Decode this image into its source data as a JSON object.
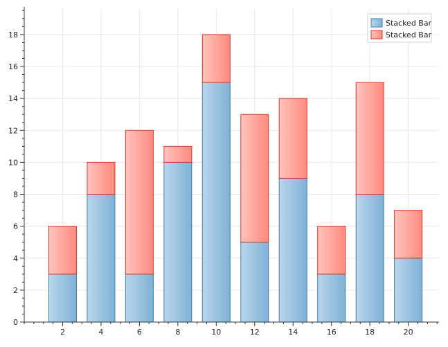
{
  "chart_data": {
    "type": "bar",
    "stacked": true,
    "categories": [
      2,
      4,
      6,
      8,
      10,
      12,
      14,
      16,
      18,
      20
    ],
    "series": [
      {
        "name": "Stacked Bar",
        "values": [
          3,
          8,
          3,
          10,
          15,
          5,
          9,
          3,
          8,
          4
        ],
        "color": "#8fbcdc",
        "stroke": "#3f7ea6"
      },
      {
        "name": "Stacked Bar",
        "values": [
          3,
          2,
          9,
          1,
          3,
          8,
          5,
          3,
          7,
          3
        ],
        "color": "#ff9a90",
        "stroke": "#d83a2e"
      }
    ],
    "x_ticks": [
      2,
      4,
      6,
      8,
      10,
      12,
      14,
      16,
      18,
      20
    ],
    "y_ticks": [
      0,
      2,
      4,
      6,
      8,
      10,
      12,
      14,
      16,
      18
    ],
    "ylim": [
      0,
      19.6
    ],
    "xlim": [
      0,
      21.6
    ],
    "grid": true,
    "legend_position": "top-right",
    "title": "",
    "xlabel": "",
    "ylabel": ""
  }
}
